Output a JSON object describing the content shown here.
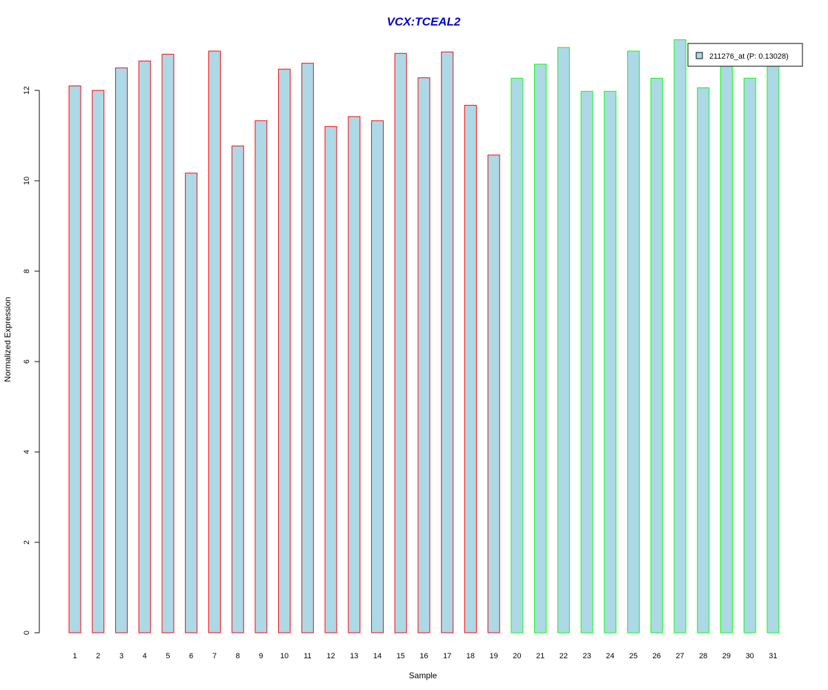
{
  "chart_data": {
    "type": "bar",
    "title": "VCX:TCEAL2",
    "xlabel": "Sample",
    "ylabel": "Normalized Expression",
    "ylim": [
      0,
      13.2
    ],
    "yticks": [
      0,
      2,
      4,
      6,
      8,
      10,
      12
    ],
    "categories": [
      "1",
      "2",
      "3",
      "4",
      "5",
      "6",
      "7",
      "8",
      "9",
      "10",
      "11",
      "12",
      "13",
      "14",
      "15",
      "16",
      "17",
      "18",
      "19",
      "20",
      "21",
      "22",
      "23",
      "24",
      "25",
      "26",
      "27",
      "28",
      "29",
      "30",
      "31"
    ],
    "series": [
      {
        "name": "211276_at (P: 0.13028)",
        "values": [
          12.1,
          12.0,
          12.5,
          12.65,
          12.8,
          10.17,
          12.87,
          10.77,
          11.33,
          12.47,
          12.6,
          11.2,
          11.42,
          11.33,
          12.82,
          12.28,
          12.85,
          11.67,
          10.57,
          12.27,
          12.58,
          12.95,
          11.98,
          11.98,
          12.87,
          12.27,
          13.12,
          12.06,
          12.7,
          12.27,
          12.7
        ],
        "fill": "#add8e6"
      }
    ],
    "groups": [
      {
        "samples": "1-19",
        "border_color": "#ff0000"
      },
      {
        "samples": "20-31",
        "border_color": "#00ff00"
      }
    ],
    "legend": {
      "label": "211276_at (P: 0.13028)",
      "placement": "top-right"
    },
    "grid": false,
    "title_color": "#0000cc"
  }
}
